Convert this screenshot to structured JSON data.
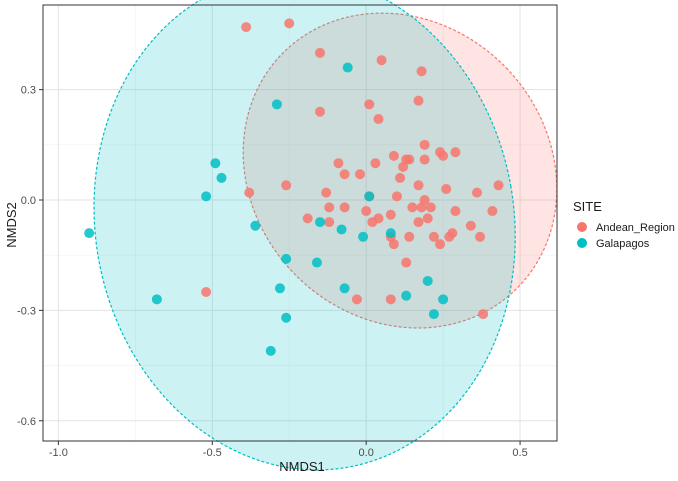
{
  "chart_data": {
    "type": "scatter",
    "xlabel": "NMDS1",
    "ylabel": "NMDS2",
    "xlim": [
      -1.05,
      0.62
    ],
    "ylim": [
      -0.655,
      0.53
    ],
    "xticks": [
      -1.0,
      -0.5,
      0.0,
      0.5
    ],
    "xtick_labels": [
      "-1.0",
      "-0.5",
      "0.0",
      "0.5"
    ],
    "yticks": [
      -0.6,
      -0.3,
      0.0,
      0.3
    ],
    "ytick_labels": [
      "-0.6",
      "-0.3",
      "0.0",
      "0.3"
    ],
    "grid": true,
    "legend": {
      "title": "SITE",
      "position": "right"
    },
    "series": [
      {
        "name": "Andean_Region",
        "color": "#F8766D",
        "ellipse": {
          "cx": 0.11,
          "cy": 0.08,
          "rx": 0.48,
          "ry": 0.22,
          "angle_deg": -44
        },
        "x": [
          -0.39,
          -0.25,
          -0.15,
          0.05,
          0.18,
          0.17,
          0.01,
          0.04,
          -0.15,
          0.19,
          0.09,
          0.24,
          0.29,
          0.19,
          0.14,
          0.13,
          0.03,
          0.12,
          -0.09,
          -0.07,
          -0.02,
          0.11,
          0.25,
          0.17,
          -0.26,
          -0.38,
          -0.13,
          0.19,
          0.26,
          0.36,
          0.43,
          0.1,
          0.01,
          -0.12,
          -0.07,
          0.18,
          0.21,
          0.29,
          0.15,
          0.0,
          0.04,
          0.08,
          0.2,
          0.17,
          0.34,
          0.41,
          -0.19,
          -0.12,
          0.02,
          0.08,
          0.22,
          0.37,
          0.28,
          0.27,
          0.14,
          0.09,
          0.24,
          0.13,
          -0.52,
          -0.03,
          0.08,
          0.38
        ],
        "y": [
          0.47,
          0.48,
          0.4,
          0.38,
          0.35,
          0.27,
          0.26,
          0.22,
          0.24,
          0.15,
          0.12,
          0.13,
          0.13,
          0.11,
          0.11,
          0.11,
          0.1,
          0.09,
          0.1,
          0.07,
          0.07,
          0.06,
          0.12,
          0.04,
          0.04,
          0.02,
          0.02,
          0.0,
          0.03,
          0.02,
          0.04,
          0.01,
          0.01,
          -0.02,
          -0.02,
          -0.02,
          -0.02,
          -0.03,
          -0.02,
          -0.03,
          -0.05,
          -0.04,
          -0.05,
          -0.06,
          -0.07,
          -0.03,
          -0.05,
          -0.06,
          -0.06,
          -0.1,
          -0.1,
          -0.1,
          -0.09,
          -0.1,
          -0.1,
          -0.12,
          -0.12,
          -0.17,
          -0.25,
          -0.27,
          -0.27,
          -0.31
        ]
      },
      {
        "name": "Galapagos",
        "color": "#00BFC4",
        "ellipse": {
          "cx": -0.2,
          "cy": -0.06,
          "rx": 0.68,
          "ry": 0.33,
          "angle_deg": -10
        },
        "x": [
          -0.06,
          -0.29,
          -0.49,
          -0.47,
          -0.52,
          0.01,
          -0.36,
          -0.15,
          -0.08,
          0.08,
          -0.01,
          -0.9,
          -0.26,
          -0.16,
          0.2,
          -0.68,
          -0.28,
          -0.07,
          0.13,
          0.25,
          -0.26,
          0.22,
          -0.31
        ],
        "y": [
          0.36,
          0.26,
          0.1,
          0.06,
          0.01,
          0.01,
          -0.07,
          -0.06,
          -0.08,
          -0.09,
          -0.1,
          -0.09,
          -0.16,
          -0.17,
          -0.22,
          -0.27,
          -0.24,
          -0.24,
          -0.26,
          -0.27,
          -0.32,
          -0.31,
          -0.41
        ]
      }
    ]
  }
}
